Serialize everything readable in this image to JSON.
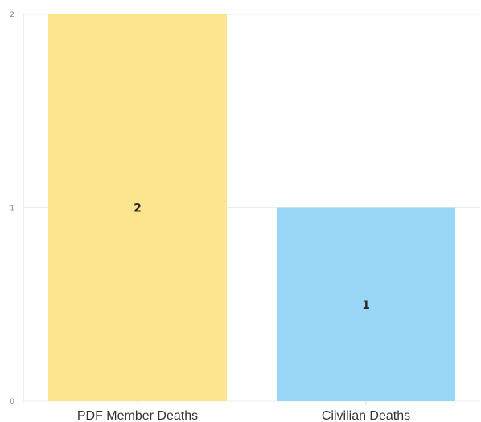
{
  "chart_data": {
    "type": "bar",
    "categories": [
      "PDF Member Deaths",
      "Ciivilian Deaths"
    ],
    "values": [
      2,
      1
    ],
    "value_labels": [
      "2",
      "1"
    ],
    "ylim": [
      0,
      2
    ],
    "y_ticks": [
      0,
      1,
      2
    ],
    "y_tick_labels": [
      "0",
      "1",
      "2"
    ],
    "colors": [
      "#fde48f",
      "#9ad7f7"
    ],
    "grid": true,
    "title": "",
    "xlabel": "",
    "ylabel": ""
  }
}
